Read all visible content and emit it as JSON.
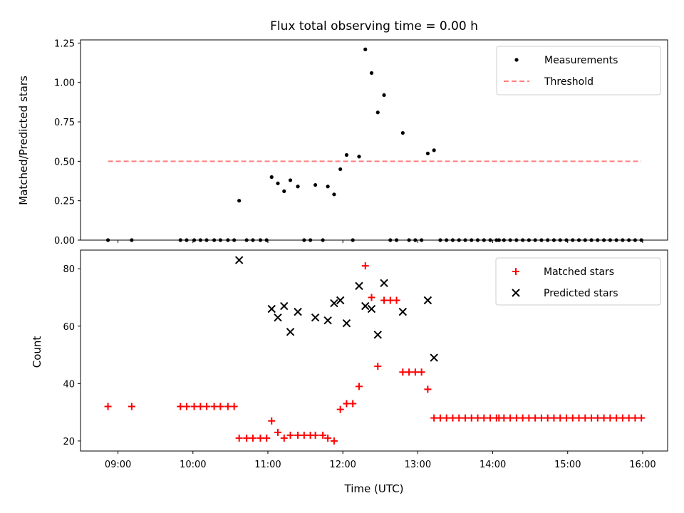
{
  "chart_data": [
    {
      "type": "scatter",
      "title": "Flux total observing time = 0.00 h",
      "xlabel": "",
      "ylabel": "Matched/Predicted stars",
      "xlim": [
        "08:30",
        "16:20"
      ],
      "ylim": [
        0,
        1.27
      ],
      "yticks": [
        "0.00",
        "0.25",
        "0.50",
        "0.75",
        "1.00",
        "1.25"
      ],
      "legend": "top-right",
      "series": [
        {
          "name": "Measurements",
          "marker": "dot",
          "color": "#000000",
          "points": [
            [
              "08:52",
              0
            ],
            [
              "09:11",
              0
            ],
            [
              "09:50",
              0
            ],
            [
              "09:55",
              0
            ],
            [
              "10:01",
              0
            ],
            [
              "10:06",
              0
            ],
            [
              "10:11",
              0
            ],
            [
              "10:17",
              0
            ],
            [
              "10:22",
              0
            ],
            [
              "10:28",
              0
            ],
            [
              "10:33",
              0
            ],
            [
              "10:37",
              0.25
            ],
            [
              "10:43",
              0
            ],
            [
              "10:48",
              0
            ],
            [
              "10:54",
              0
            ],
            [
              "10:59",
              0
            ],
            [
              "11:03",
              0.4
            ],
            [
              "11:08",
              0.36
            ],
            [
              "11:13",
              0.31
            ],
            [
              "11:18",
              0.38
            ],
            [
              "11:24",
              0.34
            ],
            [
              "11:29",
              0
            ],
            [
              "11:34",
              0
            ],
            [
              "11:38",
              0.35
            ],
            [
              "11:44",
              0
            ],
            [
              "11:48",
              0.34
            ],
            [
              "11:53",
              0.29
            ],
            [
              "11:58",
              0.45
            ],
            [
              "12:03",
              0.54
            ],
            [
              "12:08",
              0
            ],
            [
              "12:13",
              0.53
            ],
            [
              "12:18",
              1.21
            ],
            [
              "12:23",
              1.06
            ],
            [
              "12:28",
              0.81
            ],
            [
              "12:33",
              0.92
            ],
            [
              "12:38",
              0
            ],
            [
              "12:43",
              0
            ],
            [
              "12:48",
              0.68
            ],
            [
              "12:53",
              0
            ],
            [
              "12:58",
              0
            ],
            [
              "13:03",
              0
            ],
            [
              "13:08",
              0.55
            ],
            [
              "13:13",
              0.57
            ],
            [
              "13:18",
              0
            ],
            [
              "13:23",
              0
            ],
            [
              "13:28",
              0
            ],
            [
              "13:33",
              0
            ],
            [
              "13:38",
              0
            ],
            [
              "13:43",
              0
            ],
            [
              "13:48",
              0
            ],
            [
              "13:53",
              0
            ],
            [
              "13:58",
              0
            ],
            [
              "14:03",
              0
            ],
            [
              "14:05",
              0
            ],
            [
              "14:09",
              0
            ],
            [
              "14:14",
              0
            ],
            [
              "14:19",
              0
            ],
            [
              "14:24",
              0
            ],
            [
              "14:29",
              0
            ],
            [
              "14:34",
              0
            ],
            [
              "14:39",
              0
            ],
            [
              "14:44",
              0
            ],
            [
              "14:49",
              0
            ],
            [
              "14:54",
              0
            ],
            [
              "14:59",
              0
            ],
            [
              "15:04",
              0
            ],
            [
              "15:09",
              0
            ],
            [
              "15:14",
              0
            ],
            [
              "15:19",
              0
            ],
            [
              "15:24",
              0
            ],
            [
              "15:29",
              0
            ],
            [
              "15:34",
              0
            ],
            [
              "15:39",
              0
            ],
            [
              "15:44",
              0
            ],
            [
              "15:49",
              0
            ],
            [
              "15:54",
              0
            ],
            [
              "15:59",
              0
            ]
          ]
        },
        {
          "name": "Threshold",
          "marker": "dashed-line",
          "color": "#ff7f7f",
          "points": [
            [
              "08:52",
              0.5
            ],
            [
              "15:59",
              0.5
            ]
          ]
        }
      ]
    },
    {
      "type": "scatter",
      "title": "",
      "xlabel": "Time (UTC)",
      "ylabel": "Count",
      "xlim": [
        "08:30",
        "16:20"
      ],
      "ylim": [
        16.5,
        86.5
      ],
      "yticks": [
        "20",
        "40",
        "60",
        "80"
      ],
      "xticks": [
        "09:00",
        "10:00",
        "11:00",
        "12:00",
        "13:00",
        "14:00",
        "15:00",
        "16:00"
      ],
      "legend": "top-right",
      "series": [
        {
          "name": "Matched stars",
          "marker": "plus",
          "color": "#ff0000",
          "points": [
            [
              "08:52",
              32
            ],
            [
              "09:11",
              32
            ],
            [
              "09:50",
              32
            ],
            [
              "09:55",
              32
            ],
            [
              "10:01",
              32
            ],
            [
              "10:06",
              32
            ],
            [
              "10:11",
              32
            ],
            [
              "10:17",
              32
            ],
            [
              "10:22",
              32
            ],
            [
              "10:28",
              32
            ],
            [
              "10:33",
              32
            ],
            [
              "10:37",
              21
            ],
            [
              "10:43",
              21
            ],
            [
              "10:48",
              21
            ],
            [
              "10:54",
              21
            ],
            [
              "10:59",
              21
            ],
            [
              "11:03",
              27
            ],
            [
              "11:08",
              23
            ],
            [
              "11:13",
              21
            ],
            [
              "11:18",
              22
            ],
            [
              "11:24",
              22
            ],
            [
              "11:29",
              22
            ],
            [
              "11:34",
              22
            ],
            [
              "11:38",
              22
            ],
            [
              "11:44",
              22
            ],
            [
              "11:48",
              21
            ],
            [
              "11:53",
              20
            ],
            [
              "11:58",
              31
            ],
            [
              "12:03",
              33
            ],
            [
              "12:08",
              33
            ],
            [
              "12:13",
              39
            ],
            [
              "12:18",
              81
            ],
            [
              "12:23",
              70
            ],
            [
              "12:28",
              46
            ],
            [
              "12:33",
              69
            ],
            [
              "12:38",
              69
            ],
            [
              "12:43",
              69
            ],
            [
              "12:48",
              44
            ],
            [
              "12:53",
              44
            ],
            [
              "12:58",
              44
            ],
            [
              "13:03",
              44
            ],
            [
              "13:08",
              38
            ],
            [
              "13:13",
              28
            ],
            [
              "13:18",
              28
            ],
            [
              "13:23",
              28
            ],
            [
              "13:28",
              28
            ],
            [
              "13:33",
              28
            ],
            [
              "13:38",
              28
            ],
            [
              "13:43",
              28
            ],
            [
              "13:48",
              28
            ],
            [
              "13:53",
              28
            ],
            [
              "13:58",
              28
            ],
            [
              "14:03",
              28
            ],
            [
              "14:05",
              28
            ],
            [
              "14:09",
              28
            ],
            [
              "14:14",
              28
            ],
            [
              "14:19",
              28
            ],
            [
              "14:24",
              28
            ],
            [
              "14:29",
              28
            ],
            [
              "14:34",
              28
            ],
            [
              "14:39",
              28
            ],
            [
              "14:44",
              28
            ],
            [
              "14:49",
              28
            ],
            [
              "14:54",
              28
            ],
            [
              "14:59",
              28
            ],
            [
              "15:04",
              28
            ],
            [
              "15:09",
              28
            ],
            [
              "15:14",
              28
            ],
            [
              "15:19",
              28
            ],
            [
              "15:24",
              28
            ],
            [
              "15:29",
              28
            ],
            [
              "15:34",
              28
            ],
            [
              "15:39",
              28
            ],
            [
              "15:44",
              28
            ],
            [
              "15:49",
              28
            ],
            [
              "15:54",
              28
            ],
            [
              "15:59",
              28
            ]
          ]
        },
        {
          "name": "Predicted stars",
          "marker": "x",
          "color": "#000000",
          "points": [
            [
              "10:37",
              83
            ],
            [
              "11:03",
              66
            ],
            [
              "11:08",
              63
            ],
            [
              "11:13",
              67
            ],
            [
              "11:18",
              58
            ],
            [
              "11:24",
              65
            ],
            [
              "11:38",
              63
            ],
            [
              "11:48",
              62
            ],
            [
              "11:53",
              68
            ],
            [
              "11:58",
              69
            ],
            [
              "12:03",
              61
            ],
            [
              "12:13",
              74
            ],
            [
              "12:18",
              67
            ],
            [
              "12:23",
              66
            ],
            [
              "12:28",
              57
            ],
            [
              "12:33",
              75
            ],
            [
              "12:48",
              65
            ],
            [
              "13:08",
              69
            ],
            [
              "13:13",
              49
            ]
          ]
        }
      ]
    }
  ]
}
